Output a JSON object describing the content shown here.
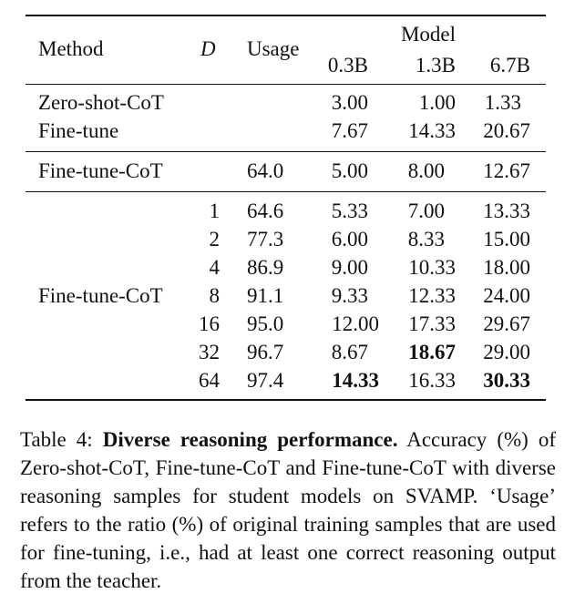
{
  "header": {
    "method": "Method",
    "d": "D",
    "usage": "Usage",
    "model": "Model",
    "sizes": [
      "0.3B",
      "1.3B",
      "6.7B"
    ]
  },
  "rows": [
    {
      "method": "Zero-shot-CoT",
      "d": "",
      "usage": "",
      "v": [
        "3.00",
        "1.00",
        "1.33"
      ]
    },
    {
      "method": "Fine-tune",
      "d": "",
      "usage": "",
      "v": [
        "7.67",
        "14.33",
        "20.67"
      ]
    },
    {
      "method": "Fine-tune-CoT",
      "d": "",
      "usage": "64.0",
      "v": [
        "5.00",
        "8.00",
        "12.67"
      ]
    },
    {
      "method": "",
      "d": "1",
      "usage": "64.6",
      "v": [
        "5.33",
        "7.00",
        "13.33"
      ]
    },
    {
      "method": "",
      "d": "2",
      "usage": "77.3",
      "v": [
        "6.00",
        "8.33",
        "15.00"
      ]
    },
    {
      "method": "",
      "d": "4",
      "usage": "86.9",
      "v": [
        "9.00",
        "10.33",
        "18.00"
      ]
    },
    {
      "method": "Fine-tune-CoT",
      "d": "8",
      "usage": "91.1",
      "v": [
        "9.33",
        "12.33",
        "24.00"
      ]
    },
    {
      "method": "",
      "d": "16",
      "usage": "95.0",
      "v": [
        "12.00",
        "17.33",
        "29.67"
      ]
    },
    {
      "method": "",
      "d": "32",
      "usage": "96.7",
      "v": [
        "8.67",
        "18.67",
        "29.00"
      ]
    },
    {
      "method": "",
      "d": "64",
      "usage": "97.4",
      "v": [
        "14.33",
        "16.33",
        "30.33"
      ]
    }
  ],
  "caption": {
    "label": "Table 4: ",
    "title": "Diverse reasoning performance.",
    "body": " Accuracy (%) of Zero-shot-CoT, Fine-tune-CoT and Fine-tune-CoT with diverse reasoning samples for student models on SVAMP. ‘Usage’ refers to the ratio (%) of original training samples that are used for fine-tuning, i.e., had at least one correct reasoning output from the teacher."
  }
}
